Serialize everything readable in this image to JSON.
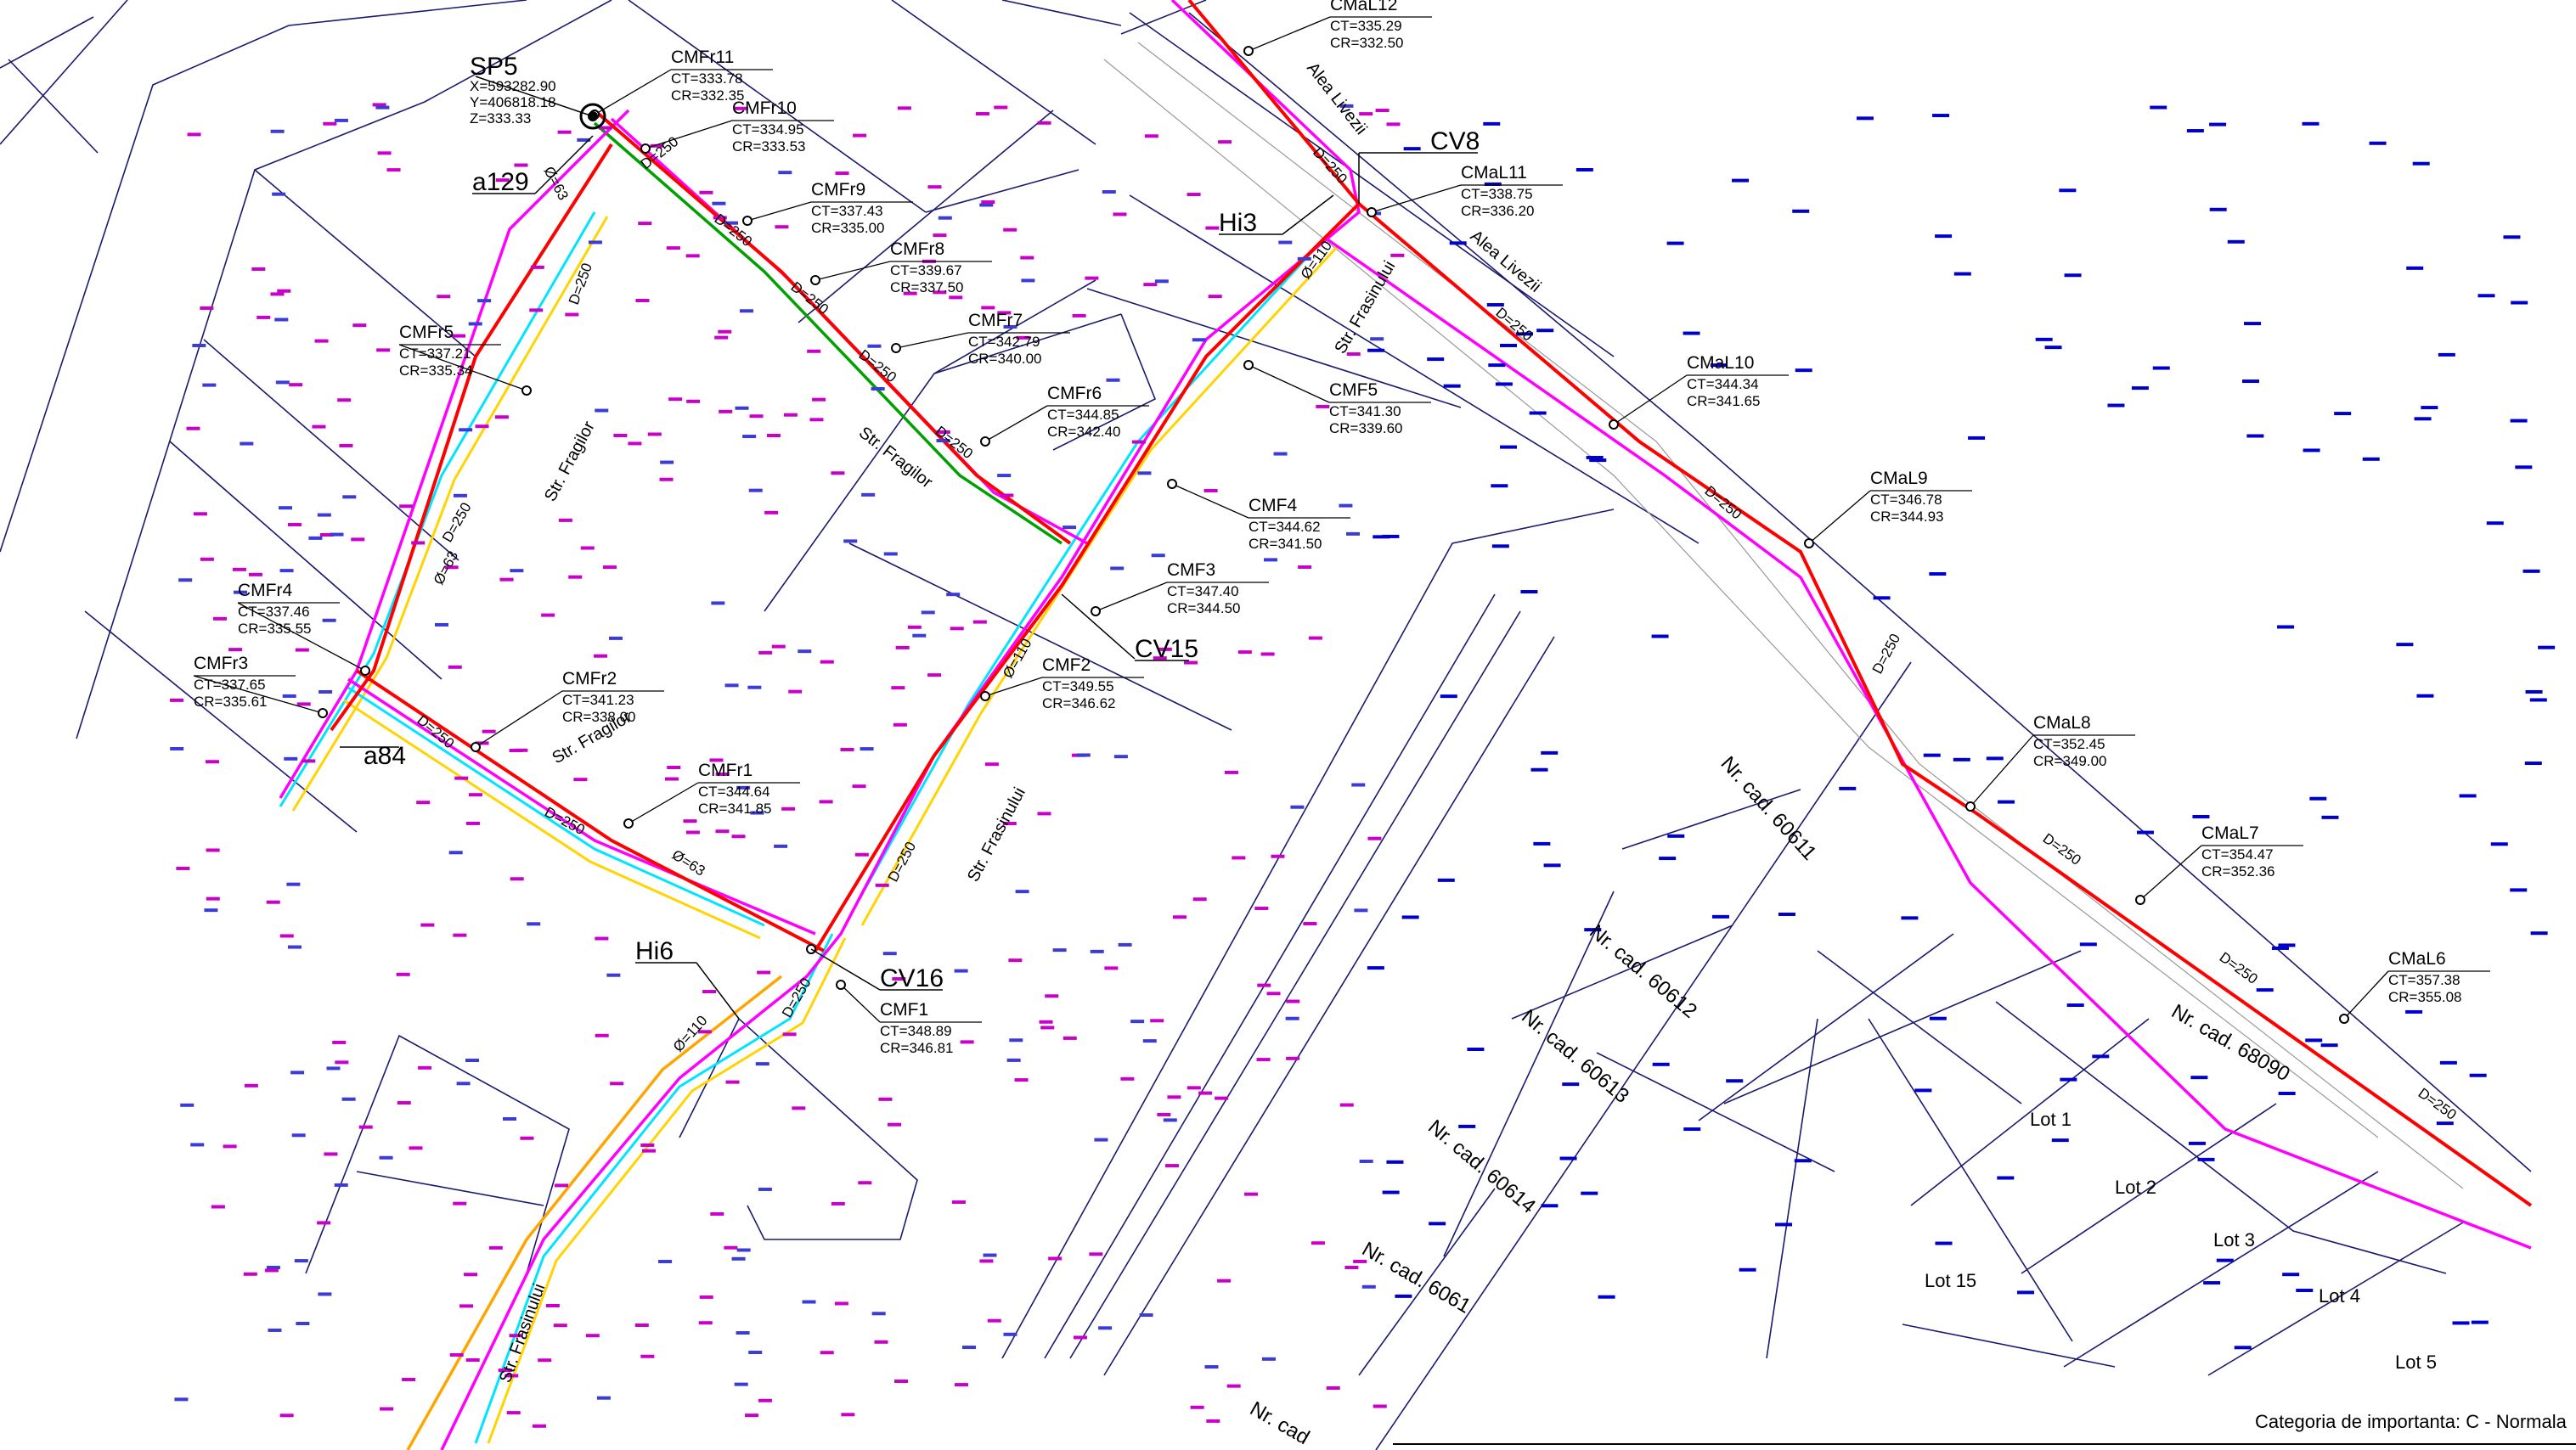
{
  "nodes": [
    {
      "id": "CMFr11",
      "ct": "CT=333.78",
      "cr": "CR=332.35"
    },
    {
      "id": "CMFr10",
      "ct": "CT=334.95",
      "cr": "CR=333.53"
    },
    {
      "id": "CMFr9",
      "ct": "CT=337.43",
      "cr": "CR=335.00"
    },
    {
      "id": "CMFr8",
      "ct": "CT=339.67",
      "cr": "CR=337.50"
    },
    {
      "id": "CMFr7",
      "ct": "CT=342.79",
      "cr": "CR=340.00"
    },
    {
      "id": "CMFr6",
      "ct": "CT=344.85",
      "cr": "CR=342.40"
    },
    {
      "id": "CMFr5",
      "ct": "CT=337.21",
      "cr": "CR=335.34"
    },
    {
      "id": "CMFr4",
      "ct": "CT=337.46",
      "cr": "CR=335.55"
    },
    {
      "id": "CMFr3",
      "ct": "CT=337.65",
      "cr": "CR=335.61"
    },
    {
      "id": "CMFr2",
      "ct": "CT=341.23",
      "cr": "CR=338.00"
    },
    {
      "id": "CMFr1",
      "ct": "CT=344.64",
      "cr": "CR=341.85"
    },
    {
      "id": "CMF5",
      "ct": "CT=341.30",
      "cr": "CR=339.60"
    },
    {
      "id": "CMF4",
      "ct": "CT=344.62",
      "cr": "CR=341.50"
    },
    {
      "id": "CMF3",
      "ct": "CT=347.40",
      "cr": "CR=344.50"
    },
    {
      "id": "CMF2",
      "ct": "CT=349.55",
      "cr": "CR=346.62"
    },
    {
      "id": "CMF1",
      "ct": "CT=348.89",
      "cr": "CR=346.81"
    },
    {
      "id": "CMaL12",
      "ct": "CT=335.29",
      "cr": "CR=332.50"
    },
    {
      "id": "CMaL11",
      "ct": "CT=338.75",
      "cr": "CR=336.20"
    },
    {
      "id": "CMaL10",
      "ct": "CT=344.34",
      "cr": "CR=341.65"
    },
    {
      "id": "CMaL9",
      "ct": "CT=346.78",
      "cr": "CR=344.93"
    },
    {
      "id": "CMaL8",
      "ct": "CT=352.45",
      "cr": "CR=349.00"
    },
    {
      "id": "CMaL7",
      "ct": "CT=354.47",
      "cr": "CR=352.36"
    },
    {
      "id": "CMaL6",
      "ct": "CT=357.38",
      "cr": "CR=355.08"
    }
  ],
  "sp5": {
    "name": "SP5",
    "x": "X=593282.90",
    "y": "Y=406818.18",
    "z": "Z=333.33"
  },
  "markers": [
    "a129",
    "a84",
    "Hi3",
    "Hi6",
    "CV8",
    "CV15",
    "CV16"
  ],
  "streets": [
    "Str. Fragilor",
    "Str. Fragilor",
    "Str. Fragilor",
    "Str. Frasinului",
    "Str. Frasinului",
    "Str. Frasinului",
    "Alea Livezii",
    "Alea Livezii"
  ],
  "pipes": [
    "D=250",
    "Ø=63",
    "Ø=110"
  ],
  "parcels": [
    "Nr. cad. 60611",
    "Nr. cad. 60612",
    "Nr. cad. 60613",
    "Nr. cad. 60614",
    "Nr. cad. 6061",
    "Nr. cad",
    "Nr. cad. 68090"
  ],
  "lots": [
    "Lot 1",
    "Lot 2",
    "Lot 3",
    "Lot 4",
    "Lot 5",
    "Lot 15"
  ],
  "footer": "Categoria de importanta: C - Normala",
  "colors": {
    "sewer": "#ff0000",
    "water": "#ff00ff",
    "gas": "#ffa500",
    "network_green": "#00a000",
    "yellow": "#ffff00",
    "cyan": "#00ffff",
    "parcel_line": "#1a1a6e",
    "existing_points": "#0000cc"
  }
}
